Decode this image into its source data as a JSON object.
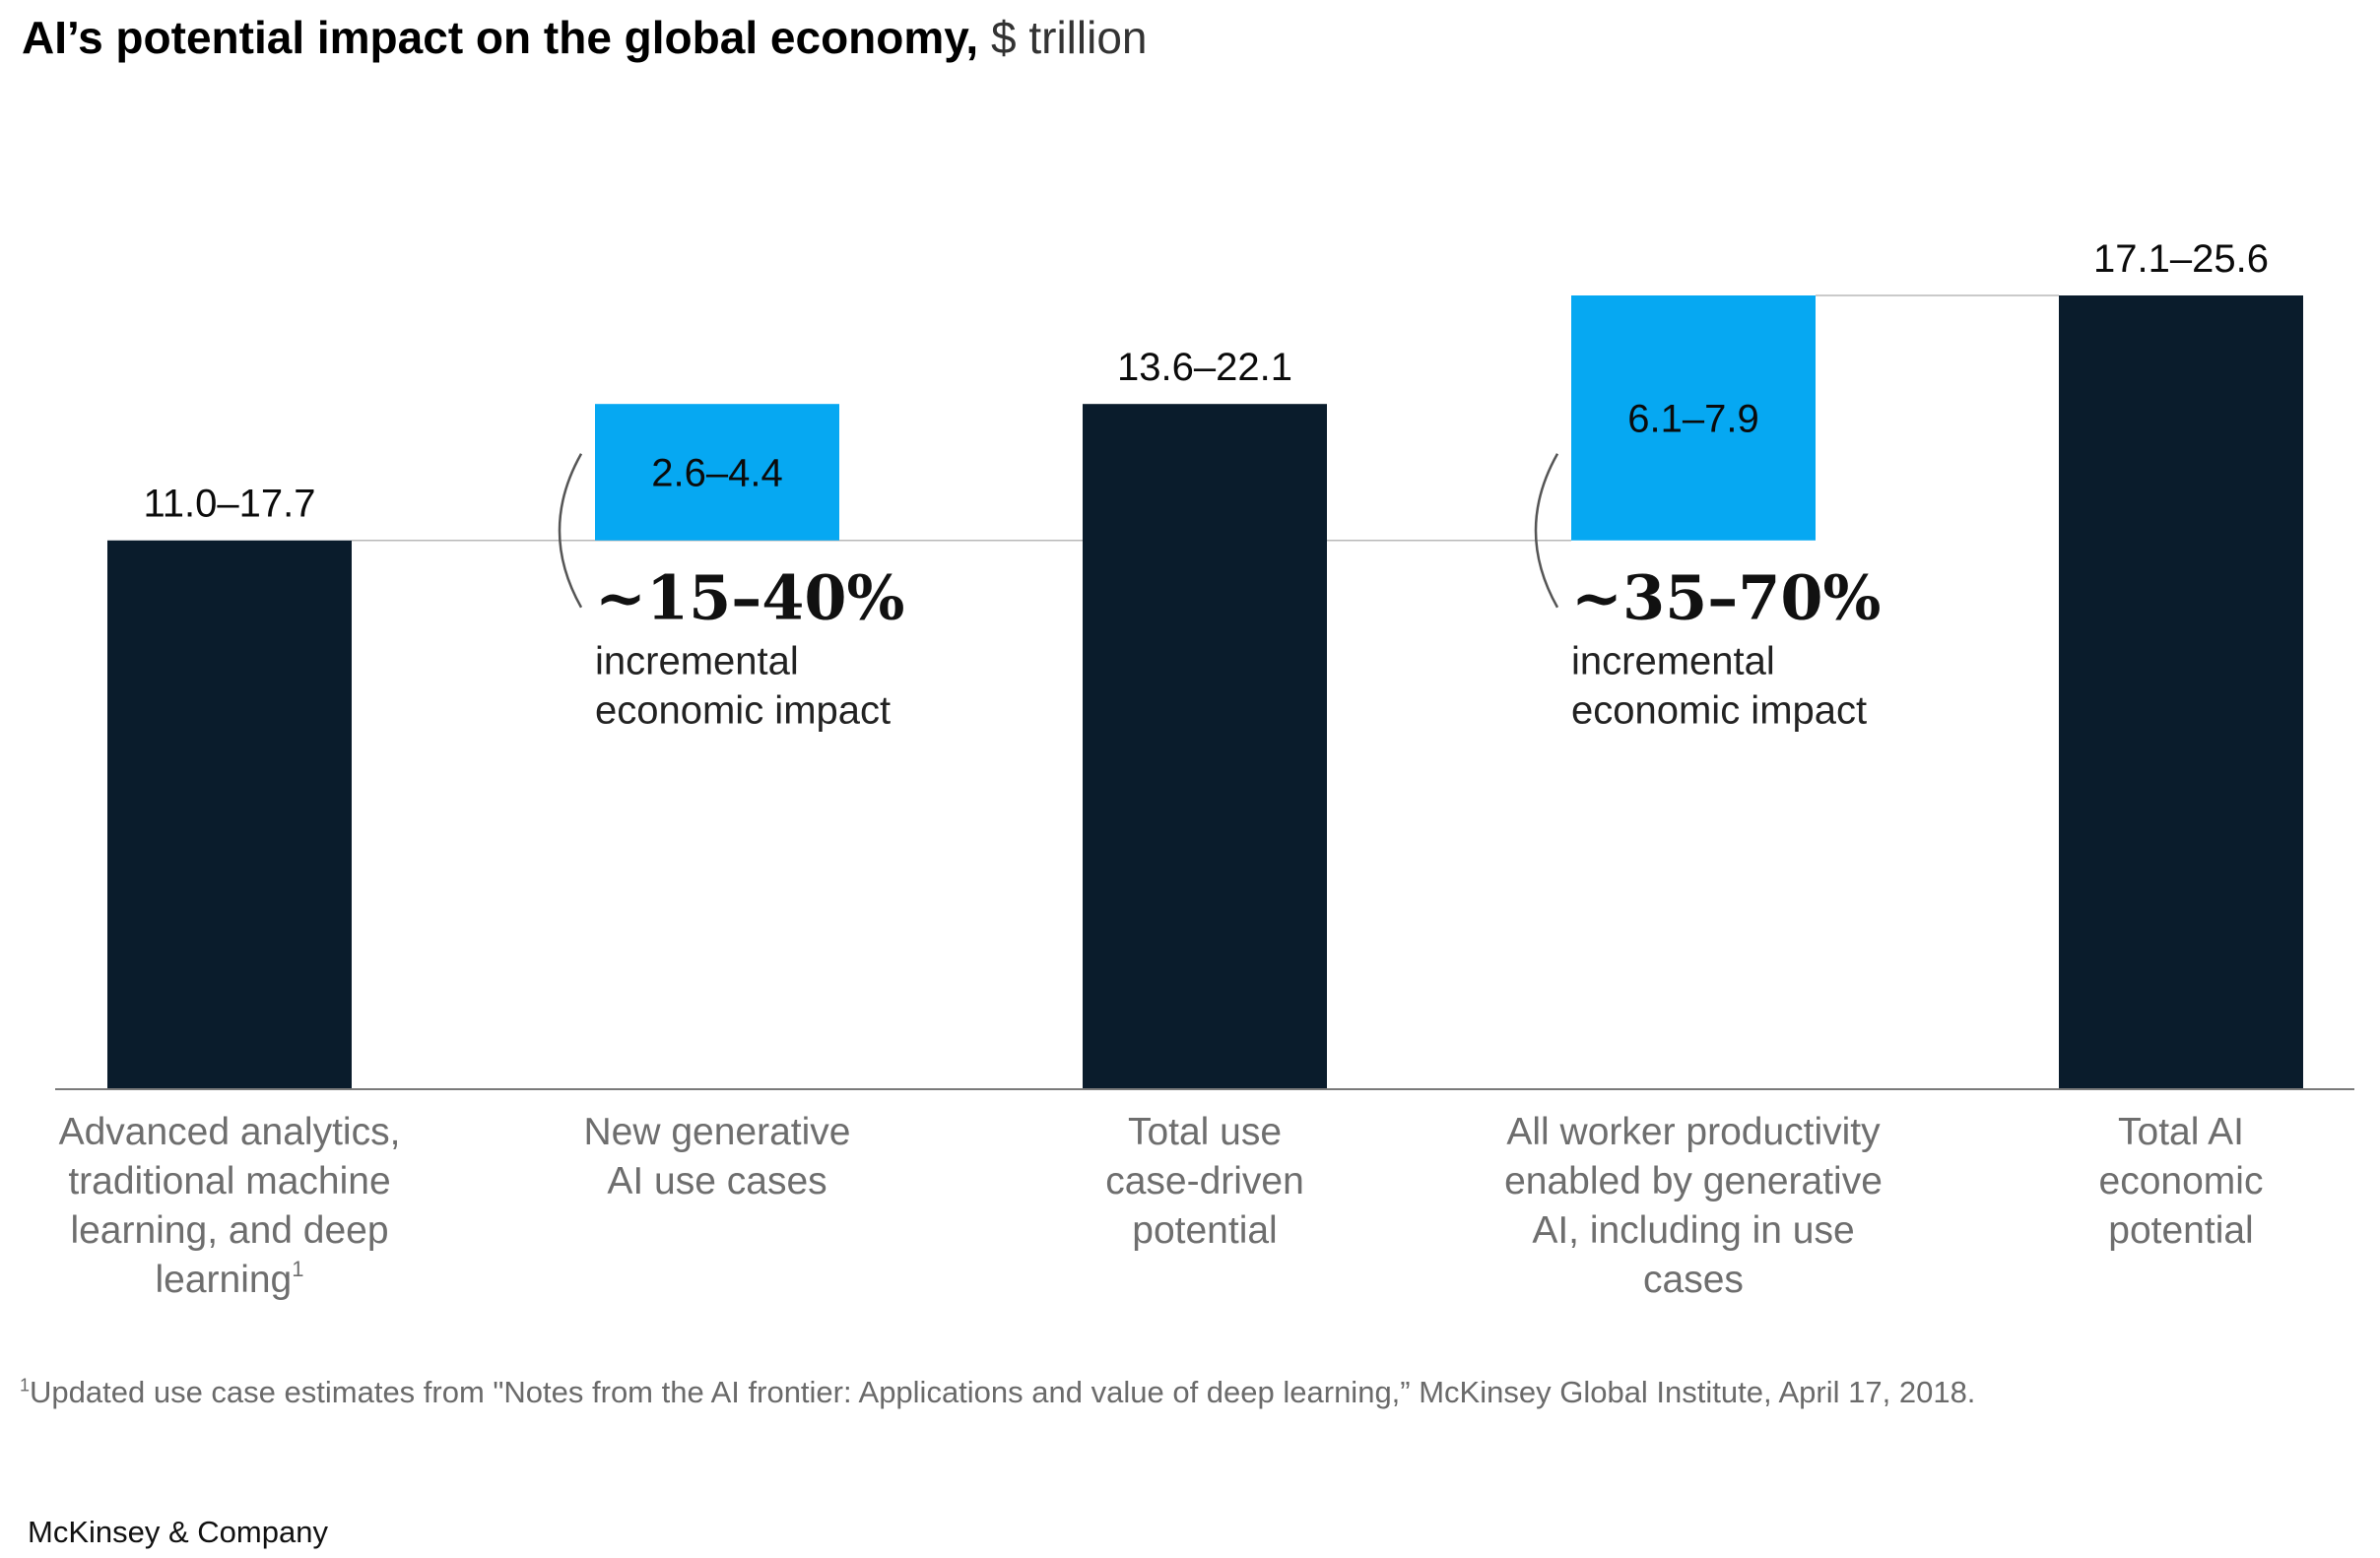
{
  "header": {
    "title_bold": "AI’s potential impact on the global economy,",
    "title_unit": "$ trillion"
  },
  "chart_data": {
    "type": "bar",
    "subtype": "waterfall",
    "title": "AI’s potential impact on the global economy, $ trillion",
    "categories": [
      [
        "Advanced analytics,",
        "traditional machine",
        "learning, and deep",
        "learning"
      ],
      [
        "New generative",
        "AI use cases"
      ],
      [
        "Total use",
        "case-driven",
        "potential"
      ],
      [
        "All worker productivity",
        "enabled by generative",
        "AI, including in use",
        "cases"
      ],
      [
        "Total AI",
        "economic",
        "potential"
      ]
    ],
    "category_footnote_marks": [
      "1",
      "",
      "",
      "",
      ""
    ],
    "bars": [
      {
        "kind": "total",
        "range_low": 11.0,
        "range_high": 17.7,
        "label": "11.0–17.7",
        "base": 0,
        "top": 17.7
      },
      {
        "kind": "increment",
        "range_low": 2.6,
        "range_high": 4.4,
        "label": "2.6–4.4",
        "base": 17.7,
        "top": 22.1
      },
      {
        "kind": "total",
        "range_low": 13.6,
        "range_high": 22.1,
        "label": "13.6–22.1",
        "base": 0,
        "top": 22.1
      },
      {
        "kind": "increment",
        "range_low": 6.1,
        "range_high": 7.9,
        "label": "6.1–7.9",
        "base": 17.7,
        "top": 25.6
      },
      {
        "kind": "total",
        "range_low": 17.1,
        "range_high": 25.6,
        "label": "17.1–25.6",
        "base": 0,
        "top": 25.6
      }
    ],
    "annotations": [
      {
        "bar": 1,
        "big": "~15–40%",
        "line1": "incremental",
        "line2": "economic impact"
      },
      {
        "bar": 3,
        "big": "~35–70%",
        "line1": "incremental",
        "line2": "economic impact"
      }
    ],
    "ylim": [
      0,
      25.6
    ],
    "colors": {
      "total": "#0a1c2c",
      "increment": "#06a8f2",
      "connector": "#b8b8b8",
      "axis": "#7a7a7a"
    }
  },
  "footnote": {
    "mark": "1",
    "text": "Updated use case estimates from \"Notes from the AI frontier: Applications and value of deep learning,” McKinsey Global Institute, April 17, 2018."
  },
  "brand": "McKinsey & Company"
}
